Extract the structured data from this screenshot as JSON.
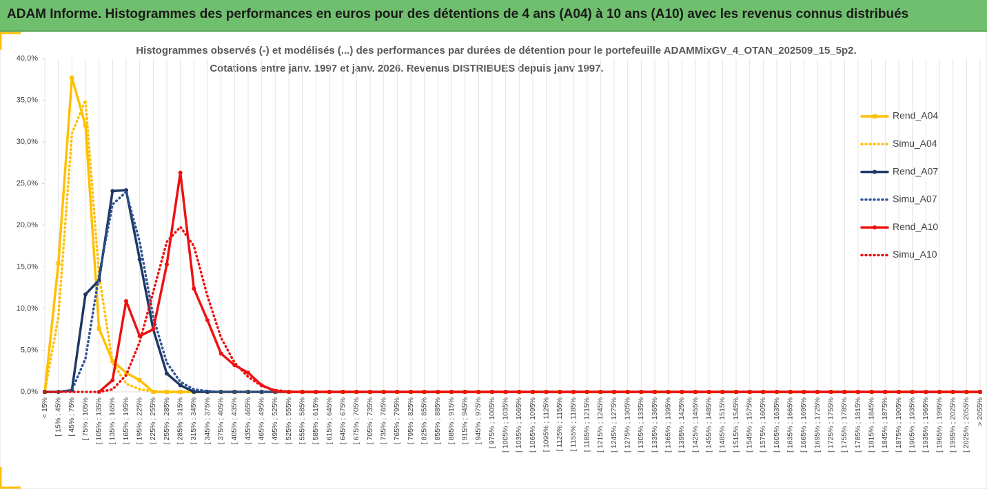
{
  "header": {
    "title": "ADAM Informe. Histogrammes des performances en euros pour des détentions de 4 ans (A04) à 10 ans (A10) avec les revenus connus distribués"
  },
  "chart_data": {
    "type": "line",
    "title": "Histogrammes observés (-) et modélisés (...) des performances par durées de détention pour  le portefeuille ADAMMixGV_4_OTAN_202509_15_5p2.",
    "subtitle": "Cotations entre janv. 1997 et janv. 2026. Revenus DISTRIBUES depuis janv 1997.",
    "categories": [
      "< 15%",
      "[ 15% ; 45%",
      "[ 45% ; 75%",
      "[ 75% ; 105%",
      "[ 105% ; 135%",
      "[ 135% ; 165%",
      "[ 165% ; 195%",
      "[ 195% ; 225%",
      "[ 225% ; 255%",
      "[ 255% ; 285%",
      "[ 285% ; 315%",
      "[ 315% ; 345%",
      "[ 345% ; 375%",
      "[ 375% ; 405%",
      "[ 405% ; 435%",
      "[ 435% ; 465%",
      "[ 465% ; 495%",
      "[ 495% ; 525%",
      "[ 525% ; 555%",
      "[ 555% ; 585%",
      "[ 585% ; 615%",
      "[ 615% ; 645%",
      "[ 645% ; 675%",
      "[ 675% ; 705%",
      "[ 705% ; 735%",
      "[ 735% ; 765%",
      "[ 765% ; 795%",
      "[ 795% ; 825%",
      "[ 825% ; 855%",
      "[ 855% ; 885%",
      "[ 885% ; 915%",
      "[ 915% ; 945%",
      "[ 945% ; 975%",
      "[ 975% ; 1005%",
      "[ 1005% ; 1035%",
      "[ 1035% ; 1065%",
      "[ 1065% ; 1095%",
      "[ 1095% ; 1125%",
      "[ 1125% ; 1155%",
      "[ 1155% ; 1185%",
      "[ 1185% ; 1215%",
      "[ 1215% ; 1245%",
      "[ 1245% ; 1275%",
      "[ 1275% ; 1305%",
      "[ 1305% ; 1335%",
      "[ 1335% ; 1365%",
      "[ 1365% ; 1395%",
      "[ 1395% ; 1425%",
      "[ 1425% ; 1455%",
      "[ 1455% ; 1485%",
      "[ 1485% ; 1515%",
      "[ 1515% ; 1545%",
      "[ 1545% ; 1575%",
      "[ 1575% ; 1605%",
      "[ 1605% ; 1635%",
      "[ 1635% ; 1665%",
      "[ 1665% ; 1695%",
      "[ 1695% ; 1725%",
      "[ 1725% ; 1755%",
      "[ 1755% ; 1785%",
      "[ 1785% ; 1815%",
      "[ 1815% ; 1845%",
      "[ 1845% ; 1875%",
      "[ 1875% ; 1905%",
      "[ 1905% ; 1935%",
      "[ 1935% ; 1965%",
      "[ 1965% ; 1995%",
      "[ 1995% ; 2025%",
      "[ 2025% ; 2055%",
      "> 2055%"
    ],
    "series": [
      {
        "name": "Rend_A04",
        "color": "#ffc000",
        "style": "solid",
        "marker": "square",
        "values": [
          0,
          15.4,
          37.7,
          32.0,
          7.6,
          3.7,
          2.3,
          1.4,
          0,
          0,
          0,
          0,
          0,
          0,
          0,
          0,
          0,
          0,
          0,
          0,
          0,
          0,
          0,
          0,
          0,
          0,
          0,
          0,
          0,
          0,
          0,
          0,
          0,
          0,
          0,
          0,
          0,
          0,
          0,
          0,
          0,
          0,
          0,
          0,
          0,
          0,
          0,
          0,
          0,
          0,
          0,
          0,
          0,
          0,
          0,
          0,
          0,
          0,
          0,
          0,
          0,
          0,
          0,
          0,
          0,
          0,
          0,
          0,
          0,
          0
        ]
      },
      {
        "name": "Simu_A04",
        "color": "#ffc000",
        "style": "dotted",
        "marker": "none",
        "values": [
          0,
          9,
          31,
          35,
          14,
          3.5,
          1,
          0.3,
          0.1,
          0,
          0,
          0,
          0,
          0,
          0,
          0,
          0,
          0,
          0,
          0,
          0,
          0,
          0,
          0,
          0,
          0,
          0,
          0,
          0,
          0,
          0,
          0,
          0,
          0,
          0,
          0,
          0,
          0,
          0,
          0,
          0,
          0,
          0,
          0,
          0,
          0,
          0,
          0,
          0,
          0,
          0,
          0,
          0,
          0,
          0,
          0,
          0,
          0,
          0,
          0,
          0,
          0,
          0,
          0,
          0,
          0,
          0,
          0,
          0,
          0
        ]
      },
      {
        "name": "Rend_A07",
        "color": "#1f3864",
        "style": "solid",
        "marker": "circle",
        "values": [
          0,
          0,
          0.2,
          11.7,
          13.4,
          24.1,
          24.2,
          15.9,
          7.5,
          2.2,
          0.8,
          0,
          0,
          0,
          0,
          0,
          0,
          0,
          0,
          0,
          0,
          0,
          0,
          0,
          0,
          0,
          0,
          0,
          0,
          0,
          0,
          0,
          0,
          0,
          0,
          0,
          0,
          0,
          0,
          0,
          0,
          0,
          0,
          0,
          0,
          0,
          0,
          0,
          0,
          0,
          0,
          0,
          0,
          0,
          0,
          0,
          0,
          0,
          0,
          0,
          0,
          0,
          0,
          0,
          0,
          0,
          0,
          0,
          0,
          0
        ]
      },
      {
        "name": "Simu_A07",
        "color": "#2f5597",
        "style": "dotted",
        "marker": "none",
        "values": [
          0,
          0,
          0.2,
          4,
          14,
          22.5,
          24,
          18,
          9,
          3.5,
          1.2,
          0.3,
          0.1,
          0,
          0,
          0,
          0,
          0,
          0,
          0,
          0,
          0,
          0,
          0,
          0,
          0,
          0,
          0,
          0,
          0,
          0,
          0,
          0,
          0,
          0,
          0,
          0,
          0,
          0,
          0,
          0,
          0,
          0,
          0,
          0,
          0,
          0,
          0,
          0,
          0,
          0,
          0,
          0,
          0,
          0,
          0,
          0,
          0,
          0,
          0,
          0,
          0,
          0,
          0,
          0,
          0,
          0,
          0,
          0,
          0
        ]
      },
      {
        "name": "Rend_A10",
        "color": "#ee1111",
        "style": "solid",
        "marker": "circle",
        "values": [
          null,
          null,
          null,
          null,
          0,
          1.4,
          10.9,
          6.7,
          7.5,
          15.3,
          26.3,
          12.4,
          8.6,
          4.6,
          3.2,
          2.3,
          0.8,
          0.1,
          0,
          0,
          0,
          0,
          0,
          0,
          0,
          0,
          0,
          0,
          0,
          0,
          0,
          0,
          0,
          0,
          0,
          0,
          0,
          0,
          0,
          0,
          0,
          0,
          0,
          0,
          0,
          0,
          0,
          0,
          0,
          0,
          0,
          0,
          0,
          0,
          0,
          0,
          0,
          0,
          0,
          0,
          0,
          0,
          0,
          0,
          0,
          0,
          0,
          0,
          0,
          0
        ]
      },
      {
        "name": "Simu_A10",
        "color": "#ee1111",
        "style": "dotted",
        "marker": "none",
        "values": [
          0,
          0,
          0,
          0,
          0,
          0.3,
          2,
          6,
          12,
          18,
          19.8,
          17.5,
          11.5,
          6.5,
          3.5,
          1.8,
          0.7,
          0.2,
          0.05,
          0,
          0,
          0,
          0,
          0,
          0,
          0,
          0,
          0,
          0,
          0,
          0,
          0,
          0,
          0,
          0,
          0,
          0,
          0,
          0,
          0,
          0,
          0,
          0,
          0,
          0,
          0,
          0,
          0,
          0,
          0,
          0,
          0,
          0,
          0,
          0,
          0,
          0,
          0,
          0,
          0,
          0,
          0,
          0,
          0,
          0,
          0,
          0,
          0,
          0,
          0
        ]
      }
    ],
    "ylim": [
      0,
      40
    ],
    "yticks": [
      {
        "value": 0,
        "label": "0,0%"
      },
      {
        "value": 5,
        "label": "5,0%"
      },
      {
        "value": 10,
        "label": "10,0%"
      },
      {
        "value": 15,
        "label": "15,0%"
      },
      {
        "value": 20,
        "label": "20,0%"
      },
      {
        "value": 25,
        "label": "25,0%"
      },
      {
        "value": 30,
        "label": "30,0%"
      },
      {
        "value": 35,
        "label": "35,0%"
      },
      {
        "value": 40,
        "label": "40,0%"
      }
    ],
    "grid": "x",
    "legend": "right"
  }
}
